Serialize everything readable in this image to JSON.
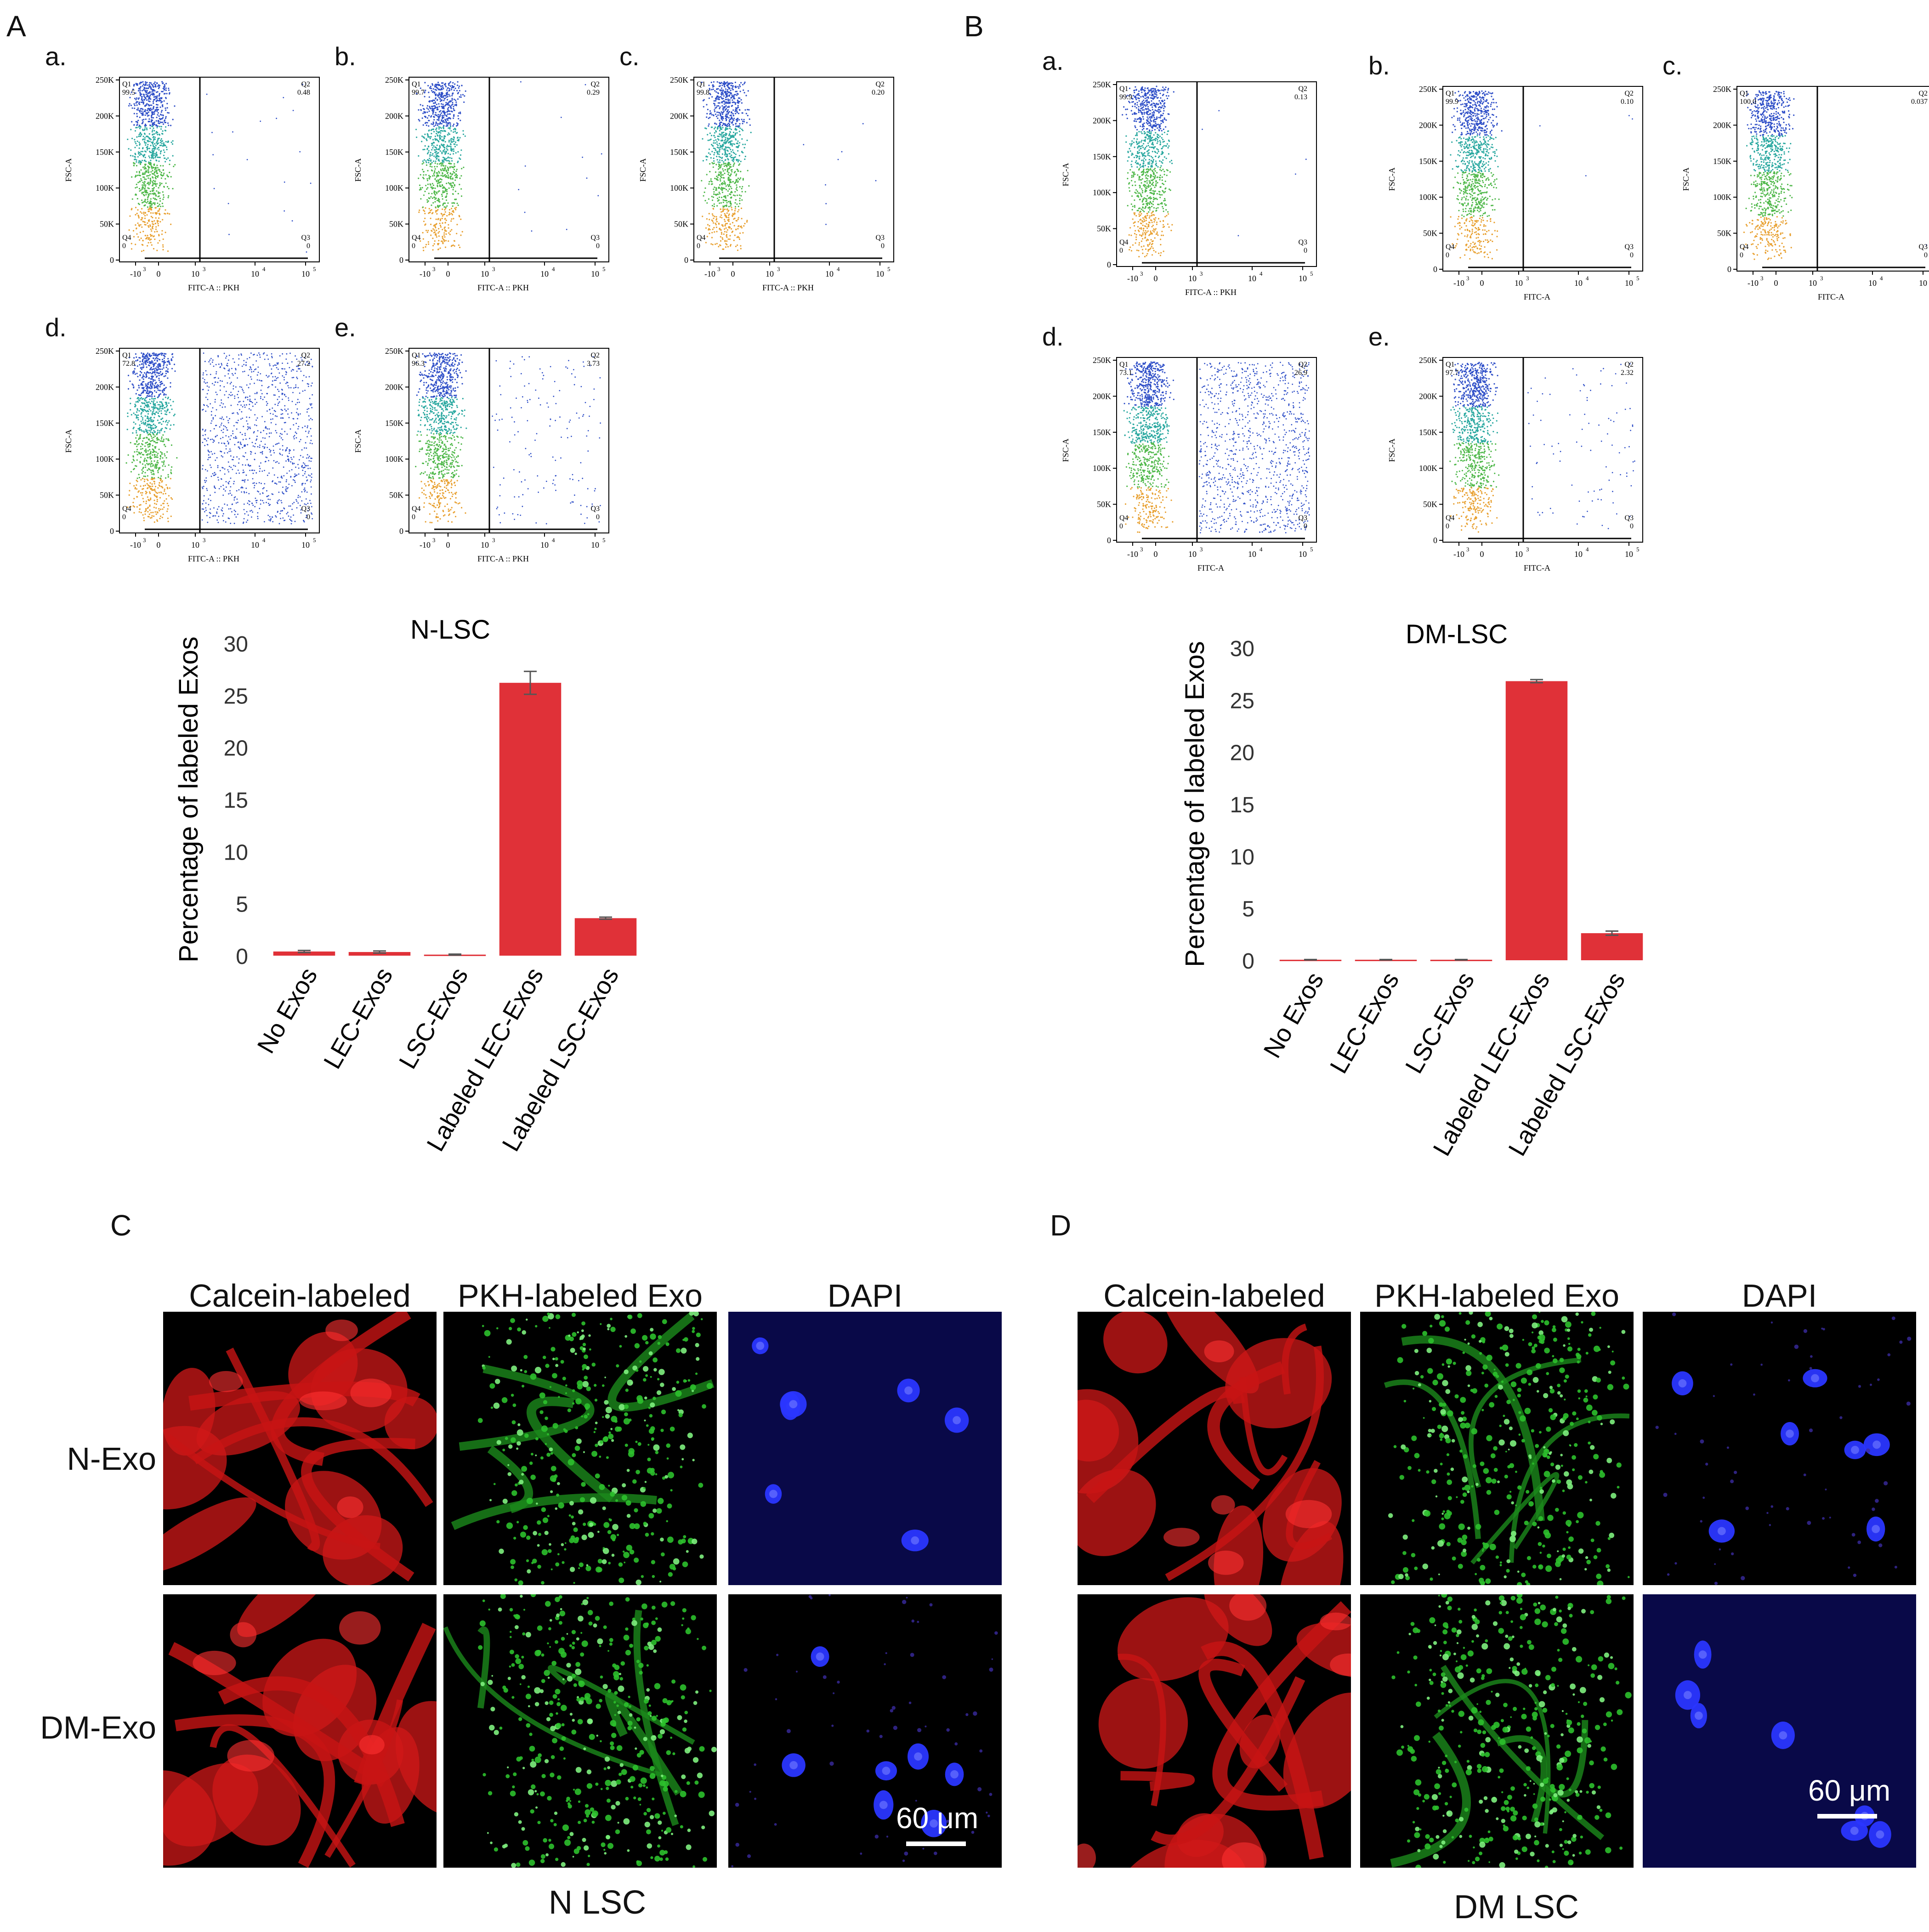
{
  "panels": {
    "A": "A",
    "B": "B",
    "C": "C",
    "D": "D"
  },
  "flow": {
    "A": {
      "plots": [
        {
          "letter": "a.",
          "q1": "99.5",
          "q2": "0.48",
          "q3": "0",
          "q4": "0",
          "xlabel": "FITC-A :: PKH",
          "ylabel": "FSC-A"
        },
        {
          "letter": "b.",
          "q1": "99.7",
          "q2": "0.29",
          "q3": "0",
          "q4": "0",
          "xlabel": "FITC-A :: PKH",
          "ylabel": "FSC-A"
        },
        {
          "letter": "c.",
          "q1": "99.8",
          "q2": "0.20",
          "q3": "0",
          "q4": "0",
          "xlabel": "FITC-A :: PKH",
          "ylabel": "FSC-A"
        },
        {
          "letter": "d.",
          "q1": "72.8",
          "q2": "27.2",
          "q3": "0",
          "q4": "0",
          "xlabel": "FITC-A :: PKH",
          "ylabel": "FSC-A"
        },
        {
          "letter": "e.",
          "q1": "96.3",
          "q2": "3.73",
          "q3": "0",
          "q4": "0",
          "xlabel": "FITC-A :: PKH",
          "ylabel": "FSC-A"
        }
      ]
    },
    "B": {
      "plots": [
        {
          "letter": "a.",
          "q1": "99.9",
          "q2": "0.13",
          "q3": "0",
          "q4": "0",
          "xlabel": "FITC-A :: PKH",
          "ylabel": "FSC-A"
        },
        {
          "letter": "b.",
          "q1": "99.9",
          "q2": "0.10",
          "q3": "0",
          "q4": "0",
          "xlabel": "FITC-A",
          "ylabel": "FSC-A"
        },
        {
          "letter": "c.",
          "q1": "100.0",
          "q2": "0.037",
          "q3": "0",
          "q4": "0",
          "xlabel": "FITC-A",
          "ylabel": "FSC-A"
        },
        {
          "letter": "d.",
          "q1": "73.1",
          "q2": "26.9",
          "q3": "0",
          "q4": "0",
          "xlabel": "FITC-A",
          "ylabel": "FSC-A"
        },
        {
          "letter": "e.",
          "q1": "97.7",
          "q2": "2.32",
          "q3": "0",
          "q4": "0",
          "xlabel": "FITC-A",
          "ylabel": "FSC-A"
        }
      ]
    },
    "y_ticks": [
      "250K",
      "200K",
      "150K",
      "100K",
      "50K",
      "0"
    ],
    "x_ticks": [
      "-10",
      "0",
      "10",
      "10",
      "10"
    ],
    "x_tick_sups": [
      "3",
      "",
      "3",
      "4",
      "5"
    ],
    "quadrant_names": {
      "q1": "Q1",
      "q2": "Q2",
      "q3": "Q3",
      "q4": "Q4"
    }
  },
  "chart_data": [
    {
      "type": "bar",
      "title": "N-LSC",
      "ylabel": "Percentage of labeled Exos",
      "xlabel": "",
      "categories": [
        "No Exos",
        "LEC-Exos",
        "LSC-Exos",
        "Labeled LEC-Exos",
        "Labeled LSC-Exos"
      ],
      "values": [
        0.4,
        0.35,
        0.1,
        26.2,
        3.6
      ],
      "errors": [
        0.1,
        0.1,
        0.05,
        1.1,
        0.1
      ],
      "ylim": [
        0,
        30
      ],
      "yticks": [
        0,
        5,
        10,
        15,
        20,
        25,
        30
      ],
      "color": "#e03138",
      "grid": false
    },
    {
      "type": "bar",
      "title": "DM-LSC",
      "ylabel": "Percentage of labeled Exos",
      "xlabel": "",
      "categories": [
        "No Exos",
        "LEC-Exos",
        "LSC-Exos",
        "Labeled LEC-Exos",
        "Labeled LSC-Exos"
      ],
      "values": [
        0.05,
        0.05,
        0.05,
        26.8,
        2.6
      ],
      "errors": [
        0.02,
        0.02,
        0.02,
        0.15,
        0.2
      ],
      "ylim": [
        0,
        30
      ],
      "yticks": [
        0,
        5,
        10,
        15,
        20,
        25,
        30
      ],
      "color": "#e03138",
      "grid": false
    }
  ],
  "microscopy": {
    "C": {
      "columns": [
        "Calcein-labeled",
        "PKH-labeled Exo",
        "DAPI"
      ],
      "rows": [
        "N-Exo",
        "DM-Exo"
      ],
      "scale": "60 μm",
      "caption": "N LSC"
    },
    "D": {
      "columns": [
        "Calcein-labeled",
        "PKH-labeled Exo",
        "DAPI"
      ],
      "scale": "60 μm",
      "caption": "DM LSC"
    }
  }
}
